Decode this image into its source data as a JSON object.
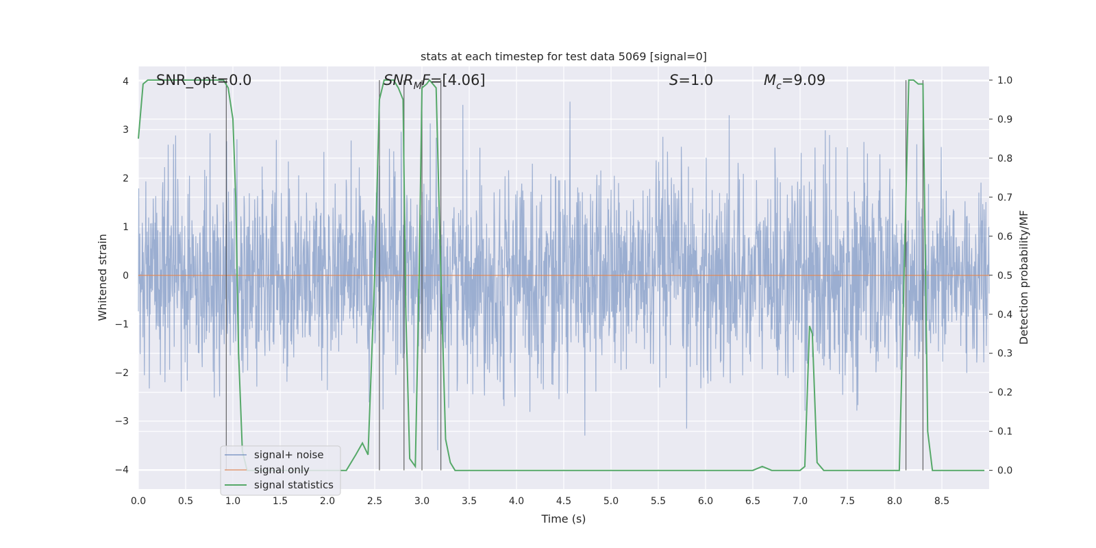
{
  "chart_data": {
    "type": "line",
    "title": "stats at each timestep for test data 5069 [signal=0]",
    "xlabel": "Time (s)",
    "ylabel": "Whitened strain",
    "y2label": "Detection probability/MF",
    "xlim": [
      0.0,
      9.0
    ],
    "ylim": [
      -4.4,
      4.3
    ],
    "y2lim": [
      -0.048,
      1.035
    ],
    "xticks": [
      0.0,
      0.5,
      1.0,
      1.5,
      2.0,
      2.5,
      3.0,
      3.5,
      4.0,
      4.5,
      5.0,
      5.5,
      6.0,
      6.5,
      7.0,
      7.5,
      8.0,
      8.5
    ],
    "xtick_labels": [
      "0.0",
      "0.5",
      "1.0",
      "1.5",
      "2.0",
      "2.5",
      "3.0",
      "3.5",
      "4.0",
      "4.5",
      "5.0",
      "5.5",
      "6.0",
      "6.5",
      "7.0",
      "7.5",
      "8.0",
      "8.5"
    ],
    "yticks": [
      4,
      3,
      2,
      1,
      0,
      -1,
      -2,
      -3,
      -4
    ],
    "ytick_labels": [
      "4",
      "3",
      "2",
      "1",
      "0",
      "−1",
      "−2",
      "−3",
      "−4"
    ],
    "y2ticks": [
      1.0,
      0.9,
      0.8,
      0.7,
      0.6,
      0.5,
      0.4,
      0.3,
      0.2,
      0.1,
      0.0
    ],
    "y2tick_labels": [
      "1.0",
      "0.9",
      "0.8",
      "0.7",
      "0.6",
      "0.5",
      "0.4",
      "0.3",
      "0.2",
      "0.1",
      "0.0"
    ],
    "grid": true,
    "legend_position": "bottom-left",
    "annotations": {
      "snr_opt": "SNR_opt=0.0",
      "snr_mf_italic": "SNR",
      "snr_mf_sub": "M",
      "snr_mf_italic2": "F",
      "snr_mf_value": "=[4.06]",
      "s_symbol": "S",
      "s_value": "=1.0",
      "mc_symbol": "M",
      "mc_sub": "c",
      "mc_value": "=9.09"
    },
    "series": [
      {
        "name": "signal+ noise",
        "color": "#4c72b0",
        "axis": "left",
        "description_values": "dense noise, approximately within [-3.5, 3.9]"
      },
      {
        "name": "signal only",
        "color": "#dd8452",
        "axis": "left",
        "values_constant": 0.0
      },
      {
        "name": "signal statistics",
        "color": "#55a868",
        "axis": "right",
        "x": [
          0.0,
          0.05,
          0.1,
          0.15,
          0.2,
          0.3,
          0.4,
          0.5,
          0.6,
          0.7,
          0.8,
          0.9,
          0.95,
          1.0,
          1.03,
          1.06,
          1.1,
          1.15,
          1.2,
          1.3,
          1.5,
          1.8,
          2.0,
          2.2,
          2.3,
          2.37,
          2.43,
          2.5,
          2.55,
          2.6,
          2.63,
          2.7,
          2.75,
          2.8,
          2.83,
          2.87,
          2.93,
          2.97,
          3.0,
          3.05,
          3.08,
          3.15,
          3.2,
          3.25,
          3.3,
          3.35,
          3.4,
          3.5,
          4.0,
          5.0,
          6.0,
          6.5,
          6.6,
          6.7,
          6.75,
          7.0,
          7.05,
          7.1,
          7.13,
          7.18,
          7.25,
          7.5,
          7.8,
          8.05,
          8.1,
          8.15,
          8.2,
          8.25,
          8.3,
          8.35,
          8.4,
          8.5,
          8.7,
          8.95
        ],
        "y": [
          0.85,
          0.99,
          1.0,
          1.0,
          1.0,
          1.0,
          1.0,
          1.0,
          1.0,
          1.0,
          1.0,
          1.0,
          0.98,
          0.9,
          0.7,
          0.3,
          0.05,
          0.0,
          0.0,
          0.0,
          0.0,
          0.0,
          0.0,
          0.0,
          0.04,
          0.07,
          0.04,
          0.5,
          0.95,
          1.0,
          1.0,
          1.0,
          0.98,
          0.95,
          0.4,
          0.03,
          0.01,
          0.5,
          0.98,
          0.99,
          1.0,
          0.98,
          0.5,
          0.08,
          0.02,
          0.0,
          0.0,
          0.0,
          0.0,
          0.0,
          0.0,
          0.0,
          0.01,
          0.0,
          0.0,
          0.0,
          0.01,
          0.37,
          0.35,
          0.02,
          0.0,
          0.0,
          0.0,
          0.0,
          0.5,
          1.0,
          1.0,
          0.99,
          0.99,
          0.1,
          0.0,
          0.0,
          0.0,
          0.0
        ]
      }
    ],
    "vertical_lines": [
      0.93,
      2.55,
      2.81,
      3.0,
      3.2,
      8.12,
      8.3
    ]
  }
}
